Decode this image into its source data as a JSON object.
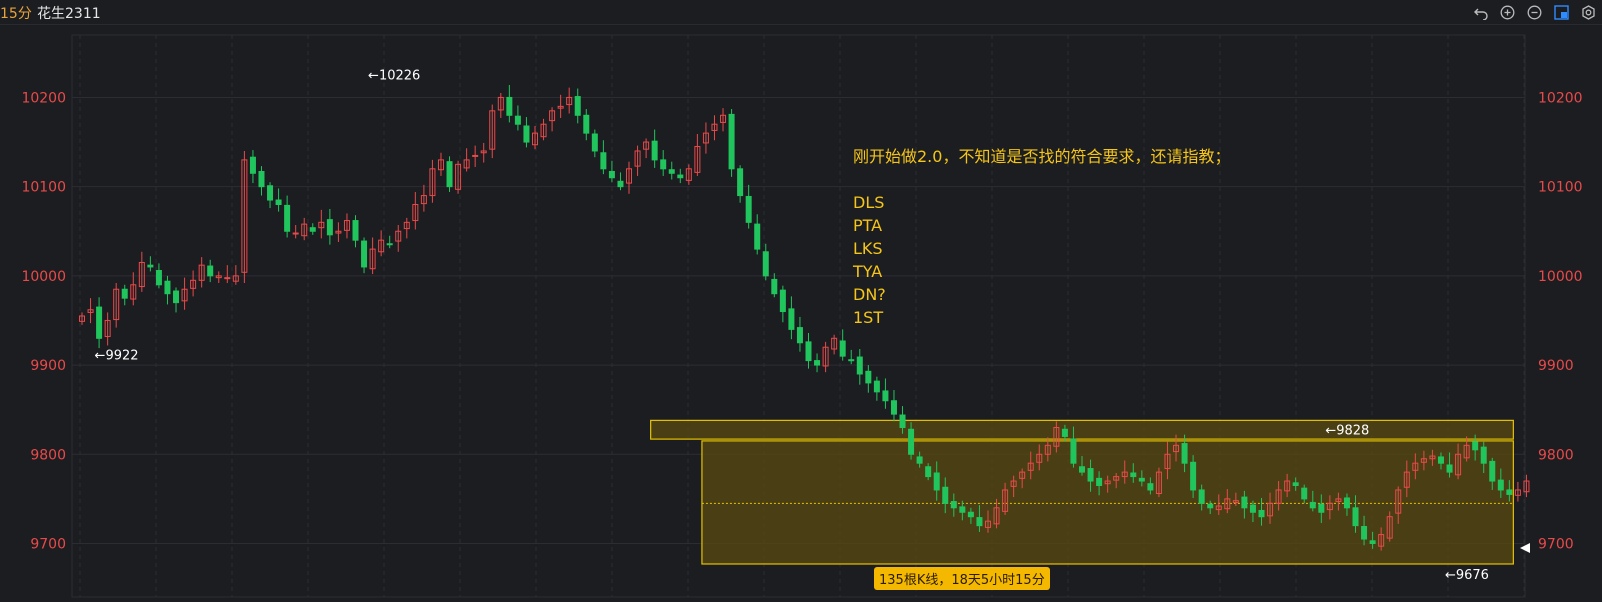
{
  "header": {
    "interval": "15分",
    "symbol": "花生2311"
  },
  "toolbar": {
    "icons": [
      "undo-icon",
      "zoom-in-icon",
      "zoom-out-icon",
      "layout-icon",
      "settings-icon"
    ]
  },
  "note": {
    "lines": [
      "刚开始做2.0，不知道是否找的符合要求，还请指教；",
      "",
      "DLS",
      "PTA",
      "LKS",
      "TYA",
      "DN?",
      "1ST"
    ]
  },
  "badge": "135根K线，18天5小时15分",
  "colors": {
    "up": "#e84a4a",
    "down": "#21c55d",
    "grid": "#2c2d33",
    "zone_fill": "#5a4b10",
    "zone_border": "#e6c200",
    "note": "#f5c518"
  },
  "chart_data": {
    "type": "candlestick",
    "y_ticks": [
      9700,
      9800,
      9900,
      10000,
      10100,
      10200
    ],
    "y_tick_labels": [
      "9700",
      "9800",
      "9900",
      "10000",
      "10100",
      "10200"
    ],
    "ylim": [
      9640,
      10270
    ],
    "annotations": [
      {
        "text": "←10226",
        "bar": 33,
        "price": 10226
      },
      {
        "text": "←9922",
        "bar": 1,
        "price": 9922
      },
      {
        "text": "←9828",
        "bar": 145,
        "price": 9828
      },
      {
        "text": "←9676",
        "bar": 159,
        "price": 9676
      }
    ],
    "zones": [
      {
        "bar_from": 67,
        "bar_to": 167,
        "price_low": 9817,
        "price_high": 9838
      },
      {
        "bar_from": 73,
        "bar_to": 167,
        "price_low": 9677,
        "price_high": 9815,
        "mid": 9745
      }
    ],
    "closes": [
      9955,
      9962,
      9930,
      9950,
      9985,
      9975,
      9990,
      10015,
      10010,
      9990,
      9980,
      9970,
      9985,
      9995,
      10012,
      10000,
      10000,
      9998,
      10000,
      10130,
      10115,
      10100,
      10085,
      10080,
      10050,
      10048,
      10058,
      10050,
      10060,
      10046,
      10050,
      10062,
      10040,
      10010,
      10030,
      10040,
      10035,
      10050,
      10060,
      10080,
      10090,
      10120,
      10130,
      10100,
      10125,
      10130,
      10135,
      10140,
      10185,
      10200,
      10180,
      10170,
      10150,
      10160,
      10170,
      10185,
      10190,
      10200,
      10180,
      10160,
      10140,
      10120,
      10110,
      10100,
      10120,
      10140,
      10150,
      10130,
      10120,
      10115,
      10110,
      10120,
      10145,
      10160,
      10170,
      10180,
      10120,
      10090,
      10060,
      10030,
      10000,
      9980,
      9960,
      9940,
      9925,
      9905,
      9900,
      9920,
      9930,
      9910,
      9905,
      9890,
      9880,
      9870,
      9860,
      9845,
      9830,
      9800,
      9790,
      9775,
      9760,
      9745,
      9740,
      9735,
      9730,
      9720,
      9725,
      9740,
      9760,
      9770,
      9780,
      9790,
      9800,
      9810,
      9830,
      9820,
      9790,
      9780,
      9770,
      9765,
      9770,
      9775,
      9780,
      9775,
      9770,
      9760,
      9780,
      9800,
      9810,
      9790,
      9760,
      9745,
      9740,
      9742,
      9750,
      9748,
      9740,
      9735,
      9730,
      9745,
      9760,
      9770,
      9765,
      9750,
      9740,
      9735,
      9745,
      9750,
      9740,
      9720,
      9705,
      9700,
      9710,
      9730,
      9760,
      9780,
      9790,
      9795,
      9798,
      9790,
      9780,
      9800,
      9810,
      9805,
      9790,
      9770,
      9760,
      9755,
      9760,
      9770,
      9780,
      9790,
      9775,
      9760,
      9740,
      9720,
      9705,
      9700,
      9710,
      9715,
      9712,
      9700
    ],
    "x_range_bars": 170
  }
}
